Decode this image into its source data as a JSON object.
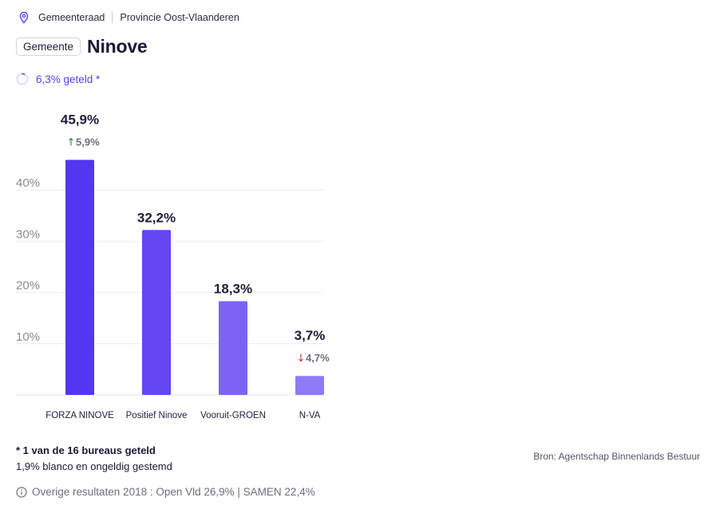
{
  "breadcrumb": {
    "level": "Gemeenteraad",
    "province": "Provincie Oost-Vlaanderen",
    "icon": "location-pin-icon"
  },
  "header": {
    "badge": "Gemeente",
    "title": "Ninove"
  },
  "progress": {
    "label": "6,3% geteld *",
    "fraction": 0.063
  },
  "chart_data": {
    "type": "bar",
    "categories": [
      "FORZA NINOVE",
      "Positief Ninove",
      "Vooruit-GROEN",
      "N-VA"
    ],
    "values": [
      45.9,
      32.2,
      18.3,
      3.7
    ],
    "value_labels": [
      "45,9%",
      "32,2%",
      "18,3%",
      "3,7%"
    ],
    "changes": [
      {
        "direction": "up",
        "label": "5,9%"
      },
      null,
      null,
      {
        "direction": "down",
        "label": "4,7%"
      }
    ],
    "yticks": [
      10,
      20,
      30,
      40
    ],
    "ytick_labels": [
      "10%",
      "20%",
      "30%",
      "40%"
    ],
    "ylim": [
      0,
      50
    ],
    "grid": true,
    "colors": [
      "#5236f0",
      "#6446f3",
      "#7c63f6",
      "#8f7af8"
    ],
    "up_color": "#2e7d32",
    "down_color": "#d32f2f"
  },
  "footnotes": {
    "counted": "* 1 van de 16 bureaus geteld",
    "blank": "1,9% blanco en ongeldig gestemd"
  },
  "source": "Bron: Agentschap Binnenlands Bestuur",
  "other_results": {
    "label": "Overige resultaten 2018 : Open Vld 26,9% | SAMEN 22,4%",
    "icon": "info-icon"
  }
}
